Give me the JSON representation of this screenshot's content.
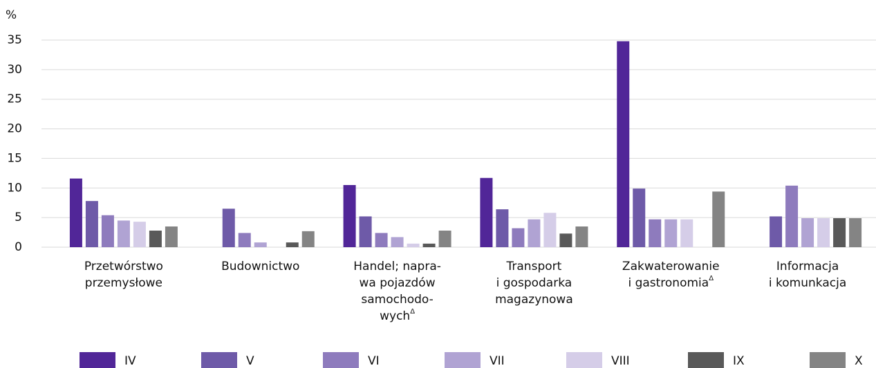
{
  "chart_data": {
    "type": "bar",
    "y_label": "%",
    "categories": [
      "Przetwórstwo\nprzemysłowe",
      "Budownictwo",
      "Handel; napra-\nwa pojazdów\nsamochodo-\nwychΔ",
      "Transport\ni gospodarka\nmagazynowa",
      "Zakwaterowanie\ni gastronomiaΔ",
      "Informacja\ni komunkacja"
    ],
    "series": [
      {
        "name": "IV",
        "color": "#512698",
        "values": [
          11.6,
          null,
          10.5,
          11.7,
          34.8,
          null
        ]
      },
      {
        "name": "V",
        "color": "#6e5aa8",
        "values": [
          7.8,
          6.5,
          5.2,
          6.4,
          9.9,
          5.2
        ]
      },
      {
        "name": "VI",
        "color": "#8e7bbd",
        "values": [
          5.4,
          2.4,
          2.4,
          3.2,
          4.7,
          10.4
        ]
      },
      {
        "name": "VII",
        "color": "#b0a3d3",
        "values": [
          4.5,
          0.8,
          1.7,
          4.7,
          4.7,
          4.9
        ]
      },
      {
        "name": "VIII",
        "color": "#d5cde8",
        "values": [
          4.3,
          null,
          0.6,
          5.8,
          4.7,
          4.9
        ]
      },
      {
        "name": "IX",
        "color": "#595959",
        "values": [
          2.8,
          0.8,
          0.6,
          2.3,
          null,
          4.9
        ]
      },
      {
        "name": "X",
        "color": "#848484",
        "values": [
          3.5,
          2.7,
          2.8,
          3.5,
          9.4,
          4.9
        ]
      }
    ],
    "ylim": [
      0,
      35
    ],
    "yticks": [
      0,
      5,
      10,
      15,
      20,
      25,
      30,
      35
    ],
    "grid": true
  }
}
